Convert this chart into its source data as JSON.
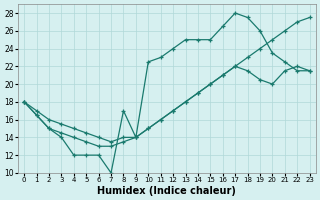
{
  "xlabel": "Humidex (Indice chaleur)",
  "background_color": "#d6f0f0",
  "line_color": "#1a7a6e",
  "xlim": [
    -0.5,
    23.5
  ],
  "ylim": [
    10,
    29
  ],
  "xticks": [
    0,
    1,
    2,
    3,
    4,
    5,
    6,
    7,
    8,
    9,
    10,
    11,
    12,
    13,
    14,
    15,
    16,
    17,
    18,
    19,
    20,
    21,
    22,
    23
  ],
  "yticks": [
    10,
    12,
    14,
    16,
    18,
    20,
    22,
    24,
    26,
    28
  ],
  "series1_x": [
    0,
    1,
    2,
    3,
    4,
    5,
    6,
    7,
    8,
    9,
    10,
    11,
    12,
    13,
    14,
    15,
    16,
    17,
    18,
    19,
    20,
    21,
    22,
    23
  ],
  "series1_y": [
    18,
    16.5,
    15,
    14,
    12,
    12,
    12,
    10,
    17,
    14,
    22.5,
    23,
    24,
    25,
    25,
    25,
    26.5,
    28,
    27.5,
    26,
    23.5,
    22.5,
    21.5,
    21.5
  ],
  "series2_x": [
    0,
    1,
    2,
    3,
    4,
    5,
    6,
    7,
    8,
    9,
    10,
    11,
    12,
    13,
    14,
    15,
    16,
    17,
    18,
    19,
    20,
    21,
    22,
    23
  ],
  "series2_y": [
    18,
    16.5,
    15,
    14.5,
    14,
    13.5,
    13,
    13,
    13.5,
    14,
    15,
    16,
    17,
    18,
    19,
    20,
    21,
    22,
    23,
    24,
    25,
    26,
    27,
    27.5
  ],
  "series3_x": [
    0,
    1,
    2,
    3,
    4,
    5,
    6,
    7,
    8,
    9,
    10,
    11,
    12,
    13,
    14,
    15,
    16,
    17,
    18,
    19,
    20,
    21,
    22,
    23
  ],
  "series3_y": [
    18,
    17,
    16,
    15.5,
    15,
    14.5,
    14,
    13.5,
    14,
    14,
    15,
    16,
    17,
    18,
    19,
    20,
    21,
    22,
    21.5,
    20.5,
    20,
    21.5,
    22,
    21.5
  ]
}
